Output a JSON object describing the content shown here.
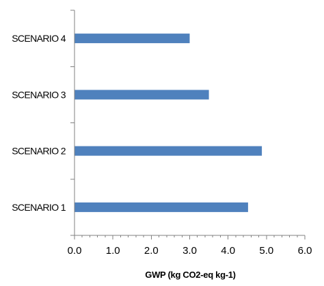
{
  "chart_data": {
    "type": "bar",
    "orientation": "horizontal",
    "categories": [
      "SCENARIO 1",
      "SCENARIO 2",
      "SCENARIO 3",
      "SCENARIO 4"
    ],
    "values": [
      4.52,
      4.88,
      3.5,
      3.0
    ],
    "xlim": [
      0,
      6
    ],
    "xticks": [
      "0.0",
      "1.0",
      "2.0",
      "3.0",
      "4.0",
      "5.0",
      "6.0"
    ],
    "title": "",
    "xlabel": "GWP (kg CO2-eq kg-1)",
    "ylabel": "",
    "grid": false,
    "legend": "none",
    "bar_color": "#4F81BD"
  }
}
